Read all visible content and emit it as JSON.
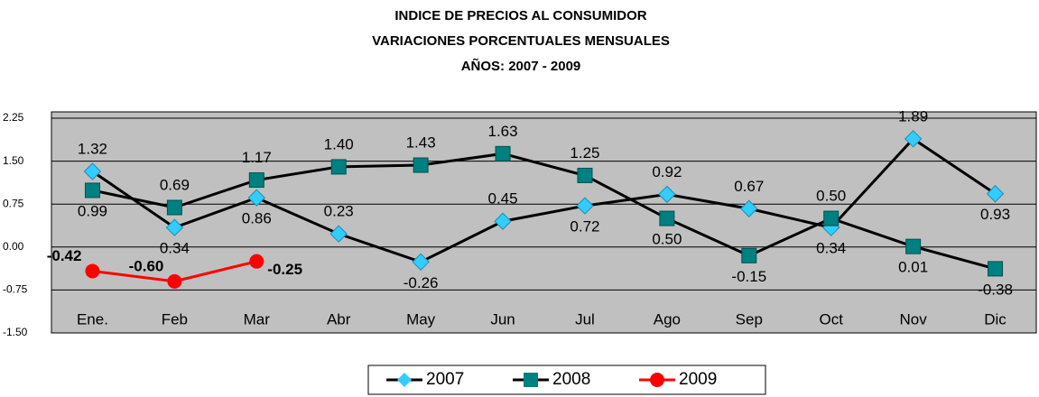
{
  "chart_data": {
    "type": "line",
    "title": [
      "INDICE DE PRECIOS AL CONSUMIDOR",
      "VARIACIONES PORCENTUALES MENSUALES",
      "AÑOS: 2007 - 2009"
    ],
    "categories": [
      "Ene.",
      "Feb",
      "Mar",
      "Abr",
      "May",
      "Jun",
      "Jul",
      "Ago",
      "Sep",
      "Oct",
      "Nov",
      "Dic"
    ],
    "series": [
      {
        "name": "2007",
        "color": "#33ccff",
        "line_color": "#000000",
        "marker": "diamond",
        "values": [
          1.32,
          0.34,
          0.86,
          0.23,
          -0.26,
          0.45,
          0.72,
          0.92,
          0.67,
          0.34,
          1.89,
          0.93
        ],
        "value_labels": [
          "1.32",
          "0.34",
          "0.86",
          "0.23",
          "-0.26",
          "0.45",
          "0.72",
          "0.92",
          "0.67",
          "0.34",
          "1.89",
          "0.93"
        ]
      },
      {
        "name": "2008",
        "color": "#008080",
        "line_color": "#000000",
        "marker": "square",
        "values": [
          0.99,
          0.69,
          1.17,
          1.4,
          1.43,
          1.63,
          1.25,
          0.5,
          -0.15,
          0.5,
          0.01,
          -0.38
        ],
        "value_labels": [
          "0.99",
          "0.69",
          "1.17",
          "1.40",
          "1.43",
          "1.63",
          "1.25",
          "0.50",
          "-0.15",
          "0.50",
          "0.01",
          "-0.38"
        ]
      },
      {
        "name": "2009",
        "color": "#ff0000",
        "line_color": "#ff0000",
        "marker": "circle",
        "values": [
          -0.42,
          -0.6,
          -0.25,
          null,
          null,
          null,
          null,
          null,
          null,
          null,
          null,
          null
        ],
        "value_labels": [
          "-0.42",
          "-0.60",
          "-0.25",
          null,
          null,
          null,
          null,
          null,
          null,
          null,
          null,
          null
        ]
      }
    ],
    "ylim": [
      -1.5,
      2.36
    ],
    "yticks": [
      {
        "value": -1.5,
        "label": "-1.50"
      },
      {
        "value": -0.75,
        "label": "-0.75"
      },
      {
        "value": 0,
        "label": "0.00"
      },
      {
        "value": 0.75,
        "label": "0.75"
      },
      {
        "value": 1.5,
        "label": "1.50"
      },
      {
        "value": 2.25,
        "label": "2.25"
      }
    ],
    "grid": true,
    "legend": "bottom"
  }
}
